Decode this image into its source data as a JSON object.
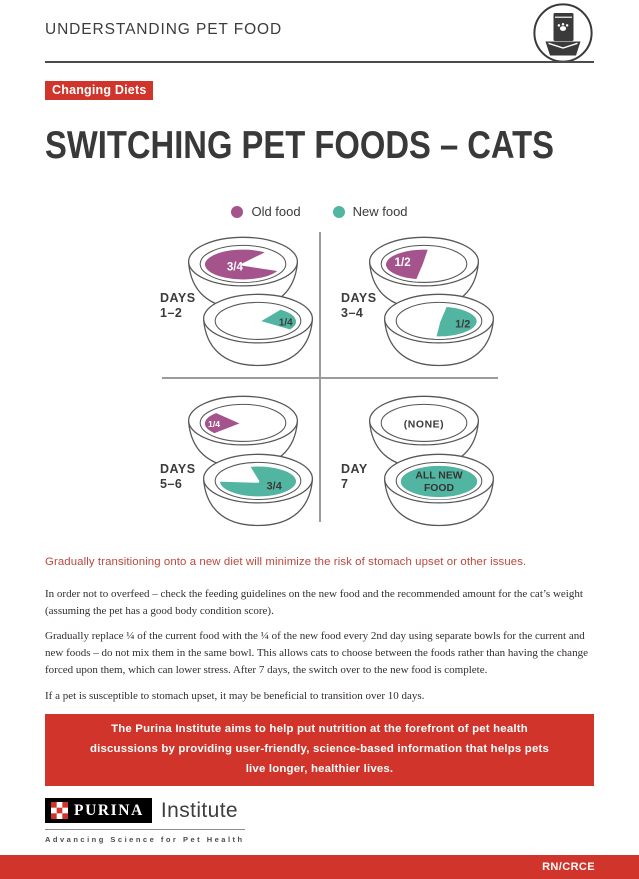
{
  "header": {
    "title": "UNDERSTANDING PET FOOD",
    "badge": "Changing Diets",
    "page_title": "SWITCHING PET FOODS – CATS"
  },
  "colors": {
    "red": "#d0342a",
    "old_food": "#a5538d",
    "new_food": "#52b5a1",
    "dark_text": "#3a3a3a"
  },
  "legend": {
    "old_label": "Old food",
    "new_label": "New food"
  },
  "diagram": {
    "quadrants": [
      {
        "day_word": "DAYS",
        "day_range": "1–2",
        "bowls": [
          {
            "shape": "threeq_left",
            "food": "old",
            "label": "3/4"
          },
          {
            "shape": "quarter_right",
            "food": "new",
            "label": "1/4"
          }
        ]
      },
      {
        "day_word": "DAYS",
        "day_range": "3–4",
        "bowls": [
          {
            "shape": "half_left",
            "food": "old",
            "label": "1/2"
          },
          {
            "shape": "half_right",
            "food": "new",
            "label": "1/2"
          }
        ]
      },
      {
        "day_word": "DAYS",
        "day_range": "5–6",
        "bowls": [
          {
            "shape": "quarter_left",
            "food": "old",
            "label": "1/4"
          },
          {
            "shape": "threeq_right",
            "food": "new",
            "label": "3/4"
          }
        ]
      },
      {
        "day_word": "DAY",
        "day_range": "7",
        "bowls": [
          {
            "shape": "none",
            "food": "none",
            "label": "(NONE)"
          },
          {
            "shape": "full",
            "food": "new",
            "label": "ALL NEW",
            "label2": "FOOD"
          }
        ]
      }
    ]
  },
  "lead": "Gradually transitioning onto a new diet will minimize the risk of stomach upset or other issues.",
  "paragraphs": [
    "In order not to overfeed – check the feeding guidelines on the new food and the recommended amount for the cat’s weight (assuming the pet has a good body condition score).",
    "Gradually replace ¼ of the current food with the ¼ of the new food every 2nd day using separate bowls for the current and new foods – do not mix them in the same bowl. This allows cats to choose between the foods rather than having the change forced upon them, which can lower stress. After 7 days, the switch over to the new food is complete.",
    "If a pet is susceptible to stomach upset, it may be beneficial to transition over 10 days."
  ],
  "callout": "The Purina Institute aims to help put nutrition at the forefront of pet health discussions by providing user-friendly, science-based information that helps pets live longer, healthier lives.",
  "footer": {
    "brand": "PURINA",
    "brand_suffix": "Institute",
    "tagline": "Advancing Science for Pet Health",
    "code": "RN/CRCE"
  }
}
